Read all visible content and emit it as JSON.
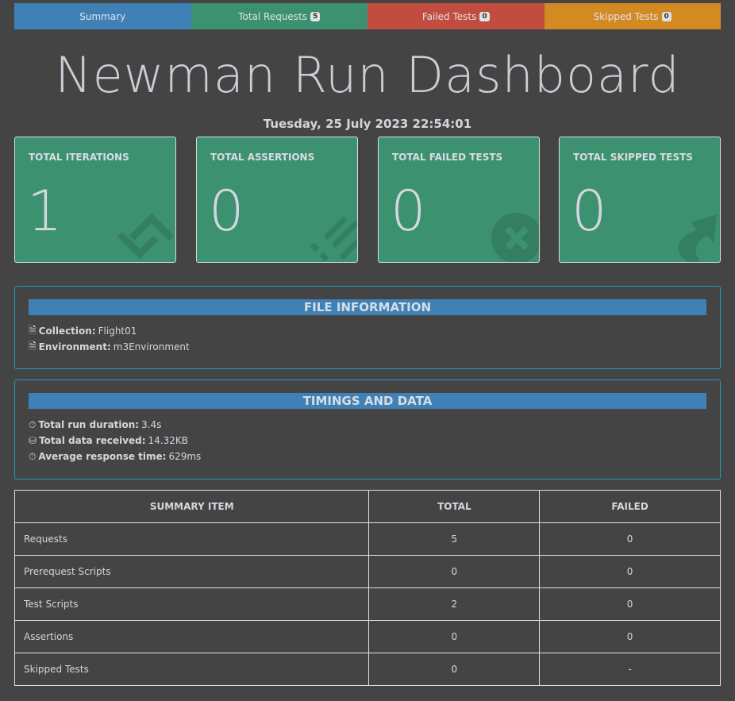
{
  "nav": {
    "tabs": [
      {
        "label": "Summary",
        "color": "#3f81b7"
      },
      {
        "label": "Total Requests",
        "badge": "5",
        "color": "#3c9170"
      },
      {
        "label": "Failed Tests",
        "badge": "0",
        "color": "#c24c40"
      },
      {
        "label": "Skipped Tests",
        "badge": "0",
        "color": "#d38a23"
      }
    ]
  },
  "header": {
    "title": "Newman Run Dashboard",
    "date": "Tuesday, 25 July 2023 22:54:01"
  },
  "cards": [
    {
      "label": "TOTAL ITERATIONS",
      "value": "1",
      "icon": "sync-icon"
    },
    {
      "label": "TOTAL ASSERTIONS",
      "value": "0",
      "icon": "stream-icon"
    },
    {
      "label": "TOTAL FAILED TESTS",
      "value": "0",
      "icon": "times-circle-icon"
    },
    {
      "label": "TOTAL SKIPPED TESTS",
      "value": "0",
      "icon": "share-arrow-icon"
    }
  ],
  "file_info": {
    "heading": "FILE INFORMATION",
    "collection_label": "Collection:",
    "collection": "Flight01",
    "environment_label": "Environment:",
    "environment": "m3Environment"
  },
  "timings": {
    "heading": "TIMINGS AND DATA",
    "duration_label": "Total run duration:",
    "duration": "3.4s",
    "data_label": "Total data received:",
    "data": "14.32KB",
    "avg_label": "Average response time:",
    "avg": "629ms"
  },
  "summary_table": {
    "headers": [
      "SUMMARY ITEM",
      "TOTAL",
      "FAILED"
    ],
    "rows": [
      [
        "Requests",
        "5",
        "0"
      ],
      [
        "Prerequest Scripts",
        "0",
        "0"
      ],
      [
        "Test Scripts",
        "2",
        "0"
      ],
      [
        "Assertions",
        "0",
        "0"
      ],
      [
        "Skipped Tests",
        "0",
        "-"
      ]
    ]
  }
}
